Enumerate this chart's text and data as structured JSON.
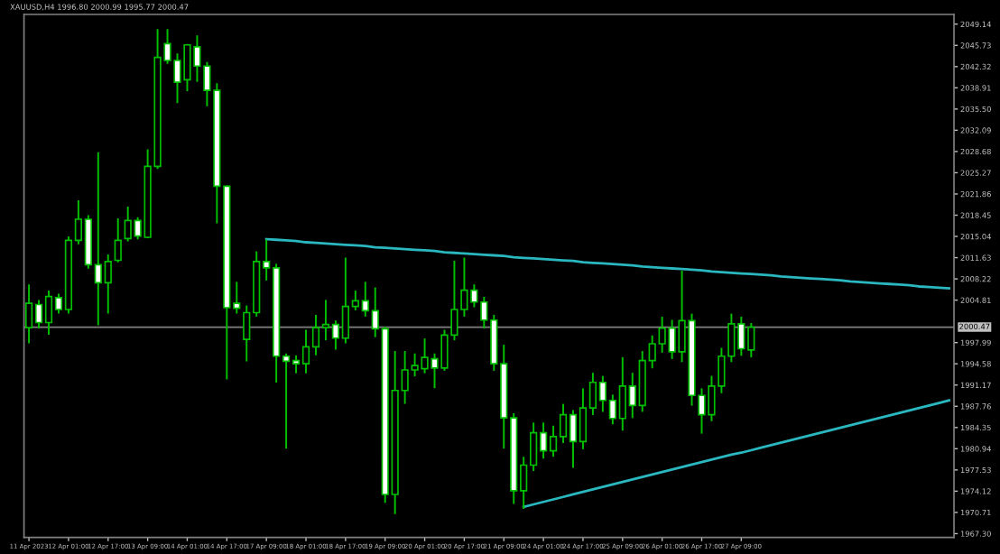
{
  "chart_data": {
    "type": "candlestick",
    "title": "XAUUSD,H4 1996.80 2000.99 1995.77 2000.47",
    "categories": [
      "11 Apr 2023",
      null,
      null,
      null,
      "12 Apr 01:00",
      null,
      null,
      null,
      "12 Apr 17:00",
      null,
      null,
      null,
      "13 Apr 09:00",
      null,
      null,
      null,
      "14 Apr 01:00",
      null,
      null,
      null,
      "14 Apr 17:00",
      null,
      null,
      null,
      "17 Apr 09:00",
      null,
      null,
      null,
      "18 Apr 01:00",
      null,
      null,
      null,
      "18 Apr 17:00",
      null,
      null,
      null,
      "19 Apr 09:00",
      null,
      null,
      null,
      "20 Apr 01:00",
      null,
      null,
      null,
      "20 Apr 17:00",
      null,
      null,
      null,
      "21 Apr 09:00",
      null,
      null,
      null,
      "24 Apr 01:00",
      null,
      null,
      null,
      "24 Apr 17:00",
      null,
      null,
      null,
      "25 Apr 09:00",
      null,
      null,
      null,
      "26 Apr 01:00",
      null,
      null,
      null,
      "26 Apr 17:00",
      null,
      null,
      null,
      "27 Apr 09:00",
      null,
      null,
      null,
      null,
      null,
      null,
      null,
      null,
      null,
      null,
      null,
      null,
      null,
      null,
      null,
      null,
      null,
      null,
      null,
      null,
      null
    ],
    "color": "#00c000",
    "colors": [
      "#000000",
      "#ffffff",
      "#000000",
      "#ffffff",
      "#000000",
      "#000000",
      "#ffffff",
      "#ffffff",
      "#000000",
      "#000000",
      "#000000",
      "#ffffff",
      "#000000",
      "#000000",
      "#ffffff",
      "#ffffff",
      "#000000",
      "#ffffff",
      "#ffffff",
      "#ffffff",
      "#ffffff",
      "#ffffff",
      "#000000",
      "#000000",
      "#ffffff",
      "#ffffff",
      "#ffffff",
      "#ffffff",
      "#000000",
      "#000000",
      "#000000",
      "#ffffff",
      "#000000",
      "#000000",
      "#ffffff",
      "#ffffff",
      "#ffffff",
      "#000000",
      "#000000",
      "#000000",
      "#000000",
      "#ffffff",
      "#000000",
      "#000000",
      "#000000",
      "#ffffff",
      "#ffffff",
      "#ffffff",
      "#ffffff",
      "#ffffff",
      "#000000",
      "#000000",
      "#ffffff",
      "#000000",
      "#000000",
      "#ffffff",
      "#000000",
      "#000000",
      "#ffffff",
      "#ffffff",
      "#000000",
      "#ffffff",
      "#000000",
      "#000000",
      "#000000",
      "#ffffff",
      "#000000",
      "#ffffff",
      "#ffffff",
      "#000000",
      "#000000",
      "#000000",
      "#ffffff",
      "#000000",
      null,
      null,
      null,
      null,
      null,
      null,
      null,
      null,
      null,
      null,
      null,
      null,
      null,
      null,
      null,
      null,
      null,
      null,
      null,
      null
    ],
    "ohlc": [
      [
        2000.4,
        2007.2,
        1998.0,
        2004.3
      ],
      [
        2004.1,
        2004.7,
        2000.4,
        2001.2
      ],
      [
        2001.2,
        2006.2,
        1999.4,
        2005.4
      ],
      [
        2005.2,
        2005.7,
        2002.8,
        2003.3
      ],
      [
        2003.3,
        2014.9,
        2002.8,
        2014.4
      ],
      [
        2014.4,
        2020.7,
        2013.9,
        2017.8
      ],
      [
        2017.8,
        2018.3,
        2010.0,
        2010.5
      ],
      [
        2010.5,
        2028.4,
        2000.9,
        2007.6
      ],
      [
        2007.6,
        2012.0,
        2002.8,
        2011.0
      ],
      [
        2011.2,
        2017.8,
        2011.0,
        2014.4
      ],
      [
        2014.7,
        2019.7,
        2014.4,
        2017.6
      ],
      [
        2017.6,
        2018.0,
        2014.7,
        2015.1
      ],
      [
        2014.9,
        2028.9,
        2014.9,
        2026.3
      ],
      [
        2026.3,
        2048.2,
        2026.0,
        2043.8
      ],
      [
        2046.0,
        2048.2,
        2042.9,
        2043.3
      ],
      [
        2043.3,
        2044.3,
        2036.6,
        2039.8
      ],
      [
        2040.2,
        2045.8,
        2038.5,
        2045.8
      ],
      [
        2045.5,
        2047.2,
        2040.0,
        2042.4
      ],
      [
        2042.4,
        2042.9,
        2036.1,
        2038.5
      ],
      [
        2038.5,
        2039.5,
        2017.3,
        2023.1
      ],
      [
        2023.1,
        2023.1,
        1992.2,
        2003.6
      ],
      [
        2004.3,
        2007.6,
        2002.8,
        2003.5
      ],
      [
        1998.5,
        2003.8,
        1995.1,
        2002.8
      ],
      [
        2002.8,
        2012.5,
        2002.3,
        2011.0
      ],
      [
        2011.0,
        2014.4,
        2008.1,
        2010.0
      ],
      [
        2010.0,
        2010.5,
        1991.7,
        1995.8
      ],
      [
        1995.8,
        1996.1,
        1981.1,
        1995.0
      ],
      [
        1995.1,
        1995.8,
        1993.2,
        1994.6
      ],
      [
        1994.6,
        1999.9,
        1993.2,
        1997.3
      ],
      [
        1997.3,
        2002.3,
        1996.1,
        2000.4
      ],
      [
        2000.4,
        2004.7,
        1998.5,
        2000.9
      ],
      [
        2000.9,
        2001.4,
        1997.0,
        1998.7
      ],
      [
        1998.7,
        2011.5,
        1998.0,
        2003.8
      ],
      [
        2003.8,
        2006.2,
        2003.3,
        2004.7
      ],
      [
        2004.7,
        2007.6,
        2002.3,
        2003.1
      ],
      [
        2003.1,
        2006.7,
        1999.0,
        2000.2
      ],
      [
        2000.2,
        2000.4,
        1972.4,
        1973.6
      ],
      [
        1973.6,
        1996.5,
        1970.6,
        1990.3
      ],
      [
        1990.3,
        1996.5,
        1988.3,
        1993.6
      ],
      [
        1993.6,
        1996.1,
        1992.7,
        1994.3
      ],
      [
        1993.8,
        1998.5,
        1993.2,
        1995.6
      ],
      [
        1995.4,
        1996.1,
        1990.8,
        1993.9
      ],
      [
        1993.9,
        1999.9,
        1993.6,
        1999.2
      ],
      [
        1999.2,
        2011.0,
        1998.5,
        2003.3
      ],
      [
        2003.3,
        2011.5,
        2002.3,
        2006.4
      ],
      [
        2006.4,
        2007.2,
        2003.8,
        2004.5
      ],
      [
        2004.5,
        2005.2,
        2000.4,
        2001.6
      ],
      [
        2001.6,
        2002.3,
        1993.6,
        1994.6
      ],
      [
        1994.6,
        1997.5,
        1981.1,
        1985.9
      ],
      [
        1985.9,
        1986.5,
        1972.2,
        1974.2
      ],
      [
        1974.2,
        1979.5,
        1971.4,
        1978.3
      ],
      [
        1978.3,
        1985.0,
        1977.5,
        1983.5
      ],
      [
        1983.5,
        1985.0,
        1979.5,
        1980.6
      ],
      [
        1980.6,
        1984.5,
        1979.8,
        1982.9
      ],
      [
        1982.9,
        1988.0,
        1982.0,
        1986.4
      ],
      [
        1986.4,
        1987.0,
        1978.0,
        1982.1
      ],
      [
        1982.1,
        1990.5,
        1981.0,
        1987.5
      ],
      [
        1987.5,
        1993.0,
        1986.5,
        1991.6
      ],
      [
        1991.6,
        1992.5,
        1987.0,
        1988.7
      ],
      [
        1988.7,
        1989.5,
        1985.0,
        1985.8
      ],
      [
        1985.8,
        1995.5,
        1984.0,
        1991.0
      ],
      [
        1991.0,
        1993.0,
        1986.0,
        1987.9
      ],
      [
        1987.9,
        1996.5,
        1987.0,
        1995.1
      ],
      [
        1995.1,
        1999.0,
        1994.0,
        1997.8
      ],
      [
        1997.8,
        2002.0,
        1996.5,
        2000.3
      ],
      [
        2000.3,
        2001.5,
        1995.5,
        1996.5
      ],
      [
        1996.5,
        2009.4,
        1995.0,
        2001.5
      ],
      [
        2001.5,
        2002.5,
        1988.0,
        1989.5
      ],
      [
        1989.5,
        1990.5,
        1983.5,
        1986.4
      ],
      [
        1986.4,
        1992.5,
        1985.5,
        1991.0
      ],
      [
        1991.0,
        1997.0,
        1990.0,
        1995.8
      ],
      [
        1995.8,
        2002.5,
        1995.0,
        2001.0
      ],
      [
        2001.0,
        2002.0,
        1996.0,
        1997.0
      ],
      [
        1996.8,
        2000.99,
        1995.77,
        2000.47
      ],
      null,
      null,
      null,
      null,
      null,
      null,
      null,
      null,
      null,
      null,
      null,
      null,
      null,
      null,
      null,
      null,
      null,
      null,
      null,
      null
    ],
    "series": [
      {
        "type": "line",
        "color": "#2ab7c0",
        "values": [
          null,
          null,
          null,
          null,
          null,
          null,
          null,
          null,
          null,
          null,
          null,
          null,
          null,
          null,
          null,
          null,
          null,
          null,
          null,
          null,
          null,
          null,
          null,
          null,
          2014.6,
          2014.5,
          2014.4,
          2014.3,
          2014.1,
          2014.0,
          2013.9,
          2013.8,
          2013.7,
          2013.6,
          2013.5,
          2013.3,
          2013.2,
          2013.1,
          2013.0,
          2012.9,
          2012.8,
          2012.7,
          2012.5,
          2012.4,
          2012.3,
          2012.2,
          2012.1,
          2012.0,
          2011.9,
          2011.7,
          2011.6,
          2011.5,
          2011.4,
          2011.3,
          2011.2,
          2011.1,
          2010.9,
          2010.8,
          2010.7,
          2010.6,
          2010.5,
          2010.4,
          2010.2,
          2010.1,
          2010.0,
          2009.9,
          2009.8,
          2009.7,
          2009.6,
          2009.4,
          2009.3,
          2009.2,
          2009.1,
          2009.0,
          2008.9,
          2008.8,
          2008.6,
          2008.5,
          2008.4,
          2008.3,
          2008.2,
          2008.1,
          2008.0,
          2007.8,
          2007.7,
          2007.6,
          2007.5,
          2007.4,
          2007.3,
          2007.2,
          2007.0,
          2006.9,
          2006.8,
          2006.7
        ]
      },
      {
        "type": "line",
        "color": "#2ab7c0",
        "values": [
          null,
          null,
          null,
          null,
          null,
          null,
          null,
          null,
          null,
          null,
          null,
          null,
          null,
          null,
          null,
          null,
          null,
          null,
          null,
          null,
          null,
          null,
          null,
          null,
          null,
          null,
          null,
          null,
          null,
          null,
          null,
          null,
          null,
          null,
          null,
          null,
          null,
          null,
          null,
          null,
          null,
          null,
          null,
          null,
          null,
          null,
          null,
          null,
          null,
          null,
          1971.6,
          1972.0,
          1972.4,
          1972.8,
          1973.2,
          1973.6,
          1974.0,
          1974.4,
          1974.8,
          1975.2,
          1975.6,
          1976.0,
          1976.4,
          1976.8,
          1977.2,
          1977.6,
          1978.0,
          1978.4,
          1978.8,
          1979.2,
          1979.6,
          1980.0,
          1980.3,
          1980.7,
          1981.1,
          1981.5,
          1981.9,
          1982.3,
          1982.7,
          1983.1,
          1983.5,
          1983.9,
          1984.3,
          1984.7,
          1985.1,
          1985.5,
          1985.9,
          1986.3,
          1986.7,
          1987.1,
          1987.5,
          1987.9,
          1988.3,
          1988.7
        ]
      }
    ],
    "ylim": [
      1966.7,
      2050.7
    ],
    "yticks": [
      {
        "value": 1967.3,
        "label": "1967.30"
      },
      1970.71,
      1974.12,
      1977.53,
      1980.94,
      1984.35,
      1987.76,
      1991.17,
      1994.58,
      1997.99,
      2004.81,
      2008.22,
      2011.63,
      2015.04,
      2018.45,
      2021.86,
      2025.27,
      2028.68,
      2032.09,
      {
        "value": 2035.5,
        "label": "2035.50"
      },
      2038.91,
      2042.32,
      2045.73,
      2049.14
    ],
    "ref_lines": [
      {
        "axis": "y",
        "value": 2000.47,
        "label": "2000.47",
        "color": "#808080"
      }
    ],
    "grid": false
  }
}
